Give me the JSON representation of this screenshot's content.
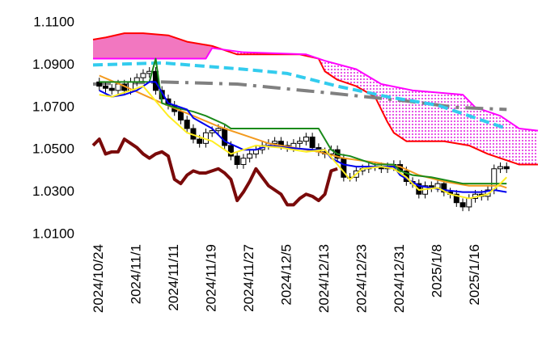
{
  "chart_data": {
    "type": "candlestick",
    "ylim": [
      1.01,
      1.11
    ],
    "yticks": [
      {
        "value": 1.01,
        "label": "1.0100"
      },
      {
        "value": 1.03,
        "label": "1.0300"
      },
      {
        "value": 1.05,
        "label": "1.0500"
      },
      {
        "value": 1.07,
        "label": "1.0700"
      },
      {
        "value": 1.09,
        "label": "1.0900"
      },
      {
        "value": 1.11,
        "label": "1.1100"
      }
    ],
    "xlim": [
      -1,
      70
    ],
    "xticks": [
      {
        "value": 0,
        "label": "2024/10/24"
      },
      {
        "value": 6,
        "label": "2024/11/1"
      },
      {
        "value": 12,
        "label": "2024/11/11"
      },
      {
        "value": 18,
        "label": "2024/11/19"
      },
      {
        "value": 24,
        "label": "2024/11/27"
      },
      {
        "value": 30,
        "label": "2024/12/5"
      },
      {
        "value": 36,
        "label": "2024/12/13"
      },
      {
        "value": 42,
        "label": "2024/12/23"
      },
      {
        "value": 48,
        "label": "2024/12/31"
      },
      {
        "value": 54,
        "label": "2025/1/8"
      },
      {
        "value": 60,
        "label": "2025/1/16"
      }
    ],
    "candles": {
      "open": [
        1.082,
        1.08,
        1.079,
        1.078,
        1.081,
        1.078,
        1.082,
        1.084,
        1.086,
        1.087,
        1.078,
        1.074,
        1.071,
        1.068,
        1.064,
        1.06,
        1.055,
        1.053,
        1.058,
        1.059,
        1.06,
        1.052,
        1.047,
        1.043,
        1.046,
        1.048,
        1.05,
        1.052,
        1.053,
        1.054,
        1.052,
        1.051,
        1.053,
        1.054,
        1.056,
        1.051,
        1.049,
        1.048,
        1.05,
        1.046,
        1.037,
        1.037,
        1.04,
        1.041,
        1.042,
        1.042,
        1.041,
        1.042,
        1.043,
        1.04,
        1.035,
        1.034,
        1.029,
        1.033,
        1.032,
        1.034,
        1.03,
        1.029,
        1.025,
        1.023,
        1.027,
        1.029,
        1.028,
        1.031,
        1.041,
        1.042
      ],
      "high": [
        1.084,
        1.082,
        1.081,
        1.083,
        1.083,
        1.084,
        1.086,
        1.088,
        1.089,
        1.089,
        1.08,
        1.076,
        1.073,
        1.07,
        1.066,
        1.062,
        1.057,
        1.06,
        1.061,
        1.062,
        1.062,
        1.054,
        1.049,
        1.048,
        1.05,
        1.052,
        1.054,
        1.055,
        1.056,
        1.056,
        1.054,
        1.055,
        1.056,
        1.058,
        1.058,
        1.053,
        1.051,
        1.052,
        1.052,
        1.048,
        1.039,
        1.042,
        1.043,
        1.044,
        1.044,
        1.044,
        1.044,
        1.045,
        1.045,
        1.042,
        1.037,
        1.036,
        1.035,
        1.035,
        1.036,
        1.036,
        1.032,
        1.031,
        1.027,
        1.029,
        1.031,
        1.031,
        1.033,
        1.043,
        1.044,
        1.044
      ],
      "low": [
        1.078,
        1.077,
        1.076,
        1.076,
        1.076,
        1.076,
        1.08,
        1.082,
        1.084,
        1.076,
        1.072,
        1.069,
        1.066,
        1.062,
        1.058,
        1.053,
        1.051,
        1.051,
        1.056,
        1.057,
        1.05,
        1.045,
        1.041,
        1.041,
        1.044,
        1.046,
        1.048,
        1.05,
        1.051,
        1.05,
        1.049,
        1.049,
        1.051,
        1.052,
        1.049,
        1.047,
        1.046,
        1.046,
        1.044,
        1.035,
        1.035,
        1.035,
        1.038,
        1.039,
        1.04,
        1.039,
        1.039,
        1.04,
        1.038,
        1.033,
        1.032,
        1.027,
        1.027,
        1.03,
        1.03,
        1.028,
        1.027,
        1.023,
        1.021,
        1.021,
        1.025,
        1.026,
        1.026,
        1.029,
        1.039,
        1.039
      ],
      "close": [
        1.08,
        1.079,
        1.078,
        1.081,
        1.078,
        1.082,
        1.084,
        1.086,
        1.087,
        1.078,
        1.074,
        1.071,
        1.068,
        1.064,
        1.06,
        1.055,
        1.053,
        1.058,
        1.059,
        1.06,
        1.052,
        1.047,
        1.043,
        1.046,
        1.048,
        1.05,
        1.052,
        1.053,
        1.054,
        1.052,
        1.051,
        1.053,
        1.054,
        1.056,
        1.051,
        1.049,
        1.048,
        1.05,
        1.046,
        1.037,
        1.037,
        1.04,
        1.041,
        1.042,
        1.042,
        1.041,
        1.042,
        1.043,
        1.04,
        1.035,
        1.034,
        1.029,
        1.033,
        1.032,
        1.034,
        1.03,
        1.029,
        1.025,
        1.023,
        1.027,
        1.029,
        1.028,
        1.031,
        1.041,
        1.042,
        1.041
      ]
    },
    "cloud": {
      "upper_color": "#f277c0",
      "lower_color": "#e020e0"
    },
    "series": [
      {
        "color": "#ff0000",
        "width": 2,
        "dash": "none",
        "x": [
          -1,
          1,
          4,
          7,
          11,
          14,
          18,
          22,
          32,
          35,
          36,
          38,
          41,
          44,
          46,
          47,
          49,
          55,
          59,
          62,
          64,
          67,
          70
        ],
        "values": [
          1.102,
          1.103,
          1.105,
          1.105,
          1.104,
          1.101,
          1.099,
          1.095,
          1.095,
          1.093,
          1.087,
          1.083,
          1.08,
          1.075,
          1.063,
          1.058,
          1.054,
          1.054,
          1.052,
          1.048,
          1.046,
          1.043,
          1.043
        ]
      },
      {
        "color": "#ff00ff",
        "width": 2,
        "dash": "none",
        "x": [
          -1,
          6,
          17,
          18,
          23,
          33,
          36,
          41,
          45,
          50,
          58,
          60,
          64,
          67,
          70
        ],
        "values": [
          1.093,
          1.093,
          1.093,
          1.098,
          1.096,
          1.095,
          1.092,
          1.088,
          1.081,
          1.078,
          1.076,
          1.07,
          1.066,
          1.06,
          1.059
        ]
      },
      {
        "color": "#808080",
        "width": 4,
        "dash": "22 8 4 8",
        "x": [
          -1,
          10,
          22,
          36,
          49,
          57,
          65
        ],
        "values": [
          1.081,
          1.082,
          1.081,
          1.077,
          1.073,
          1.07,
          1.069
        ]
      },
      {
        "color": "#33ccee",
        "width": 4,
        "dash": "12 6",
        "x": [
          -1,
          10,
          23,
          30,
          38,
          46,
          54,
          60,
          65
        ],
        "values": [
          1.09,
          1.091,
          1.088,
          1.086,
          1.08,
          1.075,
          1.071,
          1.065,
          1.06
        ]
      },
      {
        "color": "#f39a1e",
        "width": 2,
        "dash": "none",
        "x": [
          0,
          4,
          7,
          10,
          15,
          19,
          23,
          27,
          31,
          35,
          39,
          44,
          48,
          51,
          55,
          59,
          64,
          65
        ],
        "values": [
          1.085,
          1.08,
          1.076,
          1.072,
          1.066,
          1.061,
          1.057,
          1.053,
          1.051,
          1.049,
          1.046,
          1.044,
          1.042,
          1.038,
          1.035,
          1.033,
          1.033,
          1.032
        ]
      },
      {
        "color": "#1a8a1a",
        "width": 2,
        "dash": "none",
        "x": [
          0,
          4,
          8,
          9,
          10,
          12,
          15,
          17,
          20,
          21,
          25,
          29,
          31,
          35,
          36,
          37,
          38,
          40,
          44,
          47,
          48,
          50,
          53,
          58,
          65
        ],
        "values": [
          1.082,
          1.082,
          1.082,
          1.093,
          1.072,
          1.07,
          1.068,
          1.066,
          1.062,
          1.06,
          1.06,
          1.06,
          1.06,
          1.06,
          1.055,
          1.05,
          1.048,
          1.047,
          1.043,
          1.043,
          1.04,
          1.038,
          1.037,
          1.034,
          1.034
        ]
      },
      {
        "color": "#0000ee",
        "width": 2,
        "dash": "none",
        "x": [
          0,
          2,
          4,
          6,
          8,
          9,
          11,
          14,
          15,
          18,
          20,
          23,
          25,
          27,
          30,
          34,
          36,
          37,
          39,
          41,
          44,
          47,
          48,
          51,
          55,
          58,
          61,
          63,
          65
        ],
        "values": [
          1.078,
          1.075,
          1.076,
          1.078,
          1.082,
          1.082,
          1.072,
          1.069,
          1.065,
          1.06,
          1.054,
          1.05,
          1.05,
          1.052,
          1.051,
          1.05,
          1.05,
          1.046,
          1.043,
          1.042,
          1.042,
          1.042,
          1.038,
          1.033,
          1.031,
          1.03,
          1.03,
          1.031,
          1.03
        ]
      },
      {
        "color": "#ffee22",
        "width": 2,
        "dash": "none",
        "x": [
          0,
          2,
          5,
          7,
          9,
          11,
          14,
          18,
          21,
          23,
          25,
          29,
          33,
          36,
          38,
          40,
          42,
          45,
          47,
          49,
          51,
          54,
          56,
          59,
          62,
          64,
          65
        ],
        "values": [
          1.076,
          1.075,
          1.078,
          1.08,
          1.073,
          1.066,
          1.058,
          1.054,
          1.048,
          1.05,
          1.052,
          1.051,
          1.049,
          1.05,
          1.043,
          1.036,
          1.041,
          1.042,
          1.041,
          1.037,
          1.031,
          1.032,
          1.029,
          1.027,
          1.029,
          1.034,
          1.037
        ]
      },
      {
        "color": "#7a0a0a",
        "width": 4,
        "dash": "none",
        "x": [
          -1,
          0,
          1,
          2,
          3,
          4,
          5,
          6,
          7,
          8,
          9,
          10,
          11,
          12,
          13,
          14,
          15,
          16,
          17,
          18,
          19,
          20,
          21,
          22,
          23,
          24,
          25,
          26,
          27,
          28,
          29,
          30,
          31,
          32,
          33,
          34,
          35,
          36,
          37,
          38
        ],
        "values": [
          1.052,
          1.055,
          1.048,
          1.049,
          1.049,
          1.055,
          1.053,
          1.051,
          1.048,
          1.046,
          1.048,
          1.049,
          1.047,
          1.036,
          1.034,
          1.038,
          1.04,
          1.039,
          1.039,
          1.04,
          1.041,
          1.039,
          1.036,
          1.026,
          1.03,
          1.035,
          1.041,
          1.037,
          1.033,
          1.031,
          1.029,
          1.024,
          1.024,
          1.027,
          1.029,
          1.028,
          1.026,
          1.029,
          1.04,
          1.041
        ]
      }
    ]
  }
}
